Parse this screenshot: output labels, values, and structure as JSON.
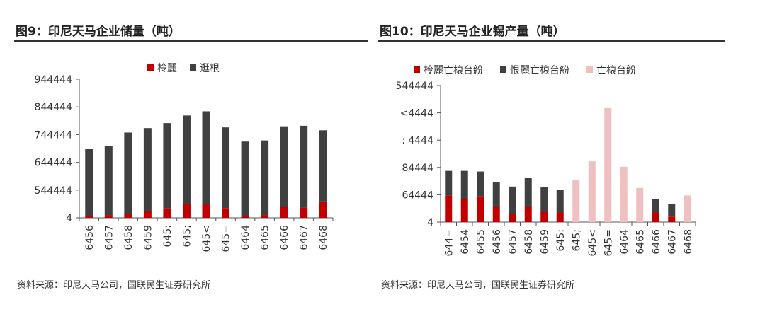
{
  "colors": {
    "red": "#c00000",
    "gray": "#404040",
    "pink": "#f0c0c0",
    "axis": "#555555",
    "text": "#333333"
  },
  "left": {
    "title": "图9：印尼天马企业储量（吨）",
    "source": "资料来源：印尼天马公司，国联民生证券研究所"
  },
  "right": {
    "title": "图10：印尼天马企业锡产量（吨）",
    "source": "资料来源：印尼天马公司，国联民生证券研究所"
  },
  "chart_data": [
    {
      "type": "bar",
      "stacked": true,
      "categories": [
        "6456",
        "6457",
        "6458",
        "6459",
        "645:",
        "645;",
        "645<",
        "645=",
        "6464",
        "6465",
        "6466",
        "6467",
        "6468"
      ],
      "series": [
        {
          "name": "柃麗",
          "color": "#c00000",
          "values": [
            15000,
            20000,
            30000,
            50000,
            70000,
            100000,
            102000,
            70000,
            15000,
            20000,
            80000,
            72000,
            118000
          ]
        },
        {
          "name": "逛根",
          "color": "#404040",
          "values": [
            485000,
            500000,
            585000,
            597000,
            613000,
            638000,
            666000,
            582000,
            535000,
            538000,
            580000,
            592000,
            513000
          ]
        }
      ],
      "yticks": [
        "4",
        "544444",
        "644444",
        "744444",
        "844444",
        "944444"
      ],
      "ylim": [
        0,
        1000000
      ],
      "legend": "top-center"
    },
    {
      "type": "bar",
      "stacked": true,
      "categories": [
        "644=",
        "6454",
        "6455",
        "6456",
        "6457",
        "6458",
        "6459",
        "645:",
        "645;",
        "645<",
        "645=",
        "6464",
        "6465",
        "6466",
        "6467",
        "6468"
      ],
      "series": [
        {
          "name": "柃麗亡榱台紛",
          "color": "#c00000",
          "values": [
            19500,
            17000,
            19000,
            11000,
            6000,
            11000,
            7500,
            7000,
            0,
            0,
            0,
            0,
            0,
            7000,
            4000,
            0
          ]
        },
        {
          "name": "恨麗亡榱台紛",
          "color": "#404040",
          "values": [
            18000,
            20500,
            18000,
            18000,
            20000,
            21500,
            18000,
            16500,
            0,
            0,
            0,
            0,
            0,
            10000,
            9000,
            0
          ]
        },
        {
          "name": "亡榱台紛",
          "color": "#f0c0c0",
          "values": [
            0,
            0,
            0,
            0,
            0,
            0,
            0,
            0,
            31000,
            44500,
            83500,
            40500,
            25000,
            0,
            0,
            19500
          ]
        }
      ],
      "yticks": [
        "4",
        "64444",
        "84444",
        ": 4444",
        "<4444",
        "544444"
      ],
      "ylim": [
        0,
        100000
      ],
      "legend": "top-center"
    }
  ]
}
